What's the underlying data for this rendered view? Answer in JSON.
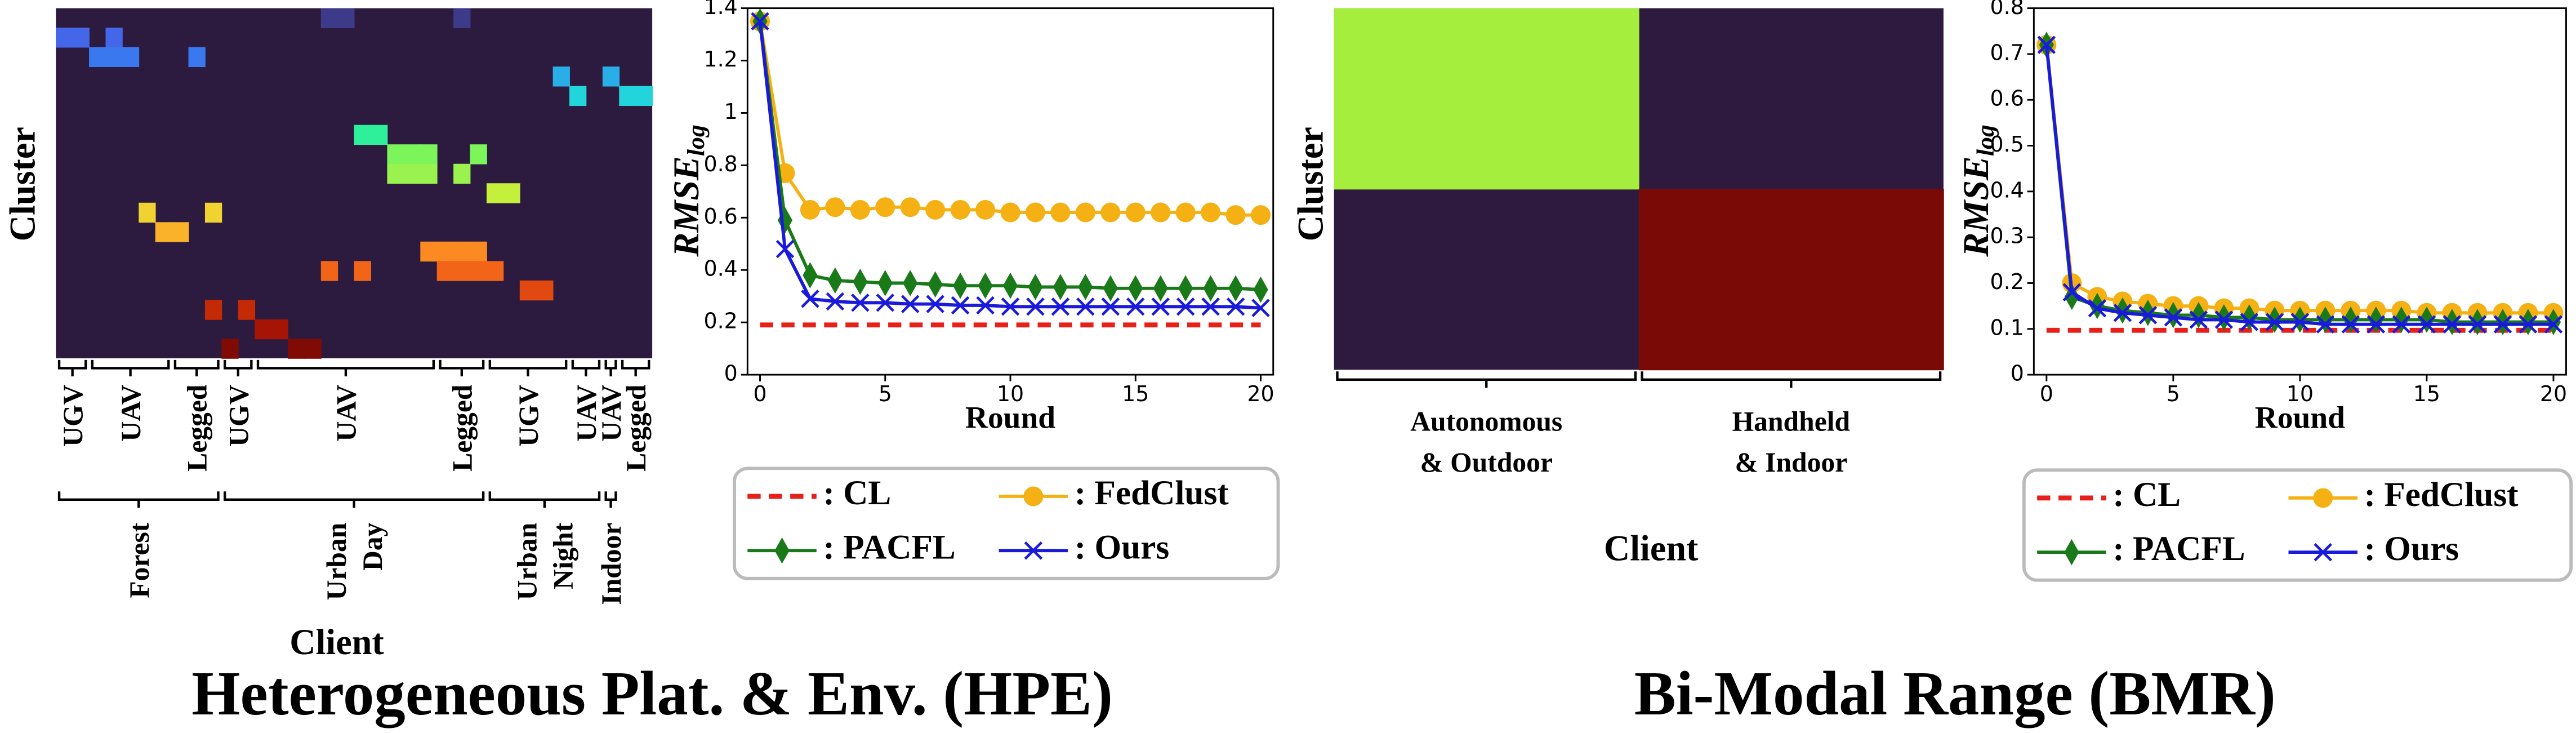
{
  "chart_data": [
    {
      "type": "heatmap",
      "title": "Heterogeneous Plat. & Env. (HPE)",
      "xlabel": "Client",
      "ylabel": "Cluster",
      "xlim": [
        0,
        36
      ],
      "ylim": [
        0,
        18
      ],
      "colors": [
        "#2d1b3f",
        "#3d3a8a",
        "#4466e8",
        "#3a78f0",
        "#2aaee8",
        "#22d4dc",
        "#2ef09a",
        "#7cf55a",
        "#9af24e",
        "#c4f03c",
        "#f0d232",
        "#fab22a",
        "#fb8a22",
        "#f26418",
        "#e04a10",
        "#c42a06",
        "#a51404",
        "#800a04"
      ],
      "cells": [
        {
          "row": 0,
          "col": 16,
          "value": 1
        },
        {
          "row": 0,
          "col": 17,
          "value": 1
        },
        {
          "row": 0,
          "col": 24,
          "value": 1
        },
        {
          "row": 1,
          "col": 0,
          "value": 2
        },
        {
          "row": 1,
          "col": 1,
          "value": 2
        },
        {
          "row": 1,
          "col": 3,
          "value": 2
        },
        {
          "row": 2,
          "col": 2,
          "value": 3
        },
        {
          "row": 2,
          "col": 3,
          "value": 3
        },
        {
          "row": 2,
          "col": 4,
          "value": 3
        },
        {
          "row": 2,
          "col": 8,
          "value": 3
        },
        {
          "row": 3,
          "col": 30,
          "value": 4
        },
        {
          "row": 3,
          "col": 33,
          "value": 4
        },
        {
          "row": 4,
          "col": 31,
          "value": 5
        },
        {
          "row": 4,
          "col": 34,
          "value": 5
        },
        {
          "row": 4,
          "col": 35,
          "value": 5
        },
        {
          "row": 6,
          "col": 18,
          "value": 6
        },
        {
          "row": 6,
          "col": 19,
          "value": 6
        },
        {
          "row": 7,
          "col": 20,
          "value": 7
        },
        {
          "row": 7,
          "col": 21,
          "value": 7
        },
        {
          "row": 7,
          "col": 22,
          "value": 7
        },
        {
          "row": 7,
          "col": 25,
          "value": 7
        },
        {
          "row": 8,
          "col": 20,
          "value": 8
        },
        {
          "row": 8,
          "col": 21,
          "value": 8
        },
        {
          "row": 8,
          "col": 22,
          "value": 8
        },
        {
          "row": 8,
          "col": 24,
          "value": 8
        },
        {
          "row": 9,
          "col": 26,
          "value": 9
        },
        {
          "row": 9,
          "col": 27,
          "value": 9
        },
        {
          "row": 10,
          "col": 5,
          "value": 10
        },
        {
          "row": 10,
          "col": 9,
          "value": 10
        },
        {
          "row": 11,
          "col": 6,
          "value": 11
        },
        {
          "row": 11,
          "col": 7,
          "value": 11
        },
        {
          "row": 12,
          "col": 22,
          "value": 12
        },
        {
          "row": 12,
          "col": 23,
          "value": 12
        },
        {
          "row": 12,
          "col": 24,
          "value": 12
        },
        {
          "row": 12,
          "col": 25,
          "value": 12
        },
        {
          "row": 13,
          "col": 16,
          "value": 13
        },
        {
          "row": 13,
          "col": 18,
          "value": 13
        },
        {
          "row": 13,
          "col": 23,
          "value": 13
        },
        {
          "row": 13,
          "col": 24,
          "value": 13
        },
        {
          "row": 13,
          "col": 25,
          "value": 13
        },
        {
          "row": 13,
          "col": 26,
          "value": 13
        },
        {
          "row": 14,
          "col": 28,
          "value": 14
        },
        {
          "row": 14,
          "col": 29,
          "value": 14
        },
        {
          "row": 15,
          "col": 9,
          "value": 15
        },
        {
          "row": 15,
          "col": 11,
          "value": 15
        },
        {
          "row": 16,
          "col": 12,
          "value": 16
        },
        {
          "row": 16,
          "col": 13,
          "value": 16
        },
        {
          "row": 17,
          "col": 10,
          "value": 17
        },
        {
          "row": 17,
          "col": 14,
          "value": 17
        },
        {
          "row": 17,
          "col": 15,
          "value": 17
        }
      ],
      "client_groups": [
        {
          "label": [
            "UGV"
          ],
          "span": [
            0,
            2
          ]
        },
        {
          "label": [
            "UAV"
          ],
          "span": [
            2,
            7
          ]
        },
        {
          "label": [
            "Legged"
          ],
          "span": [
            7,
            10
          ]
        },
        {
          "label": [
            "UGV"
          ],
          "span": [
            10,
            12
          ]
        },
        {
          "label": [
            "UAV"
          ],
          "span": [
            12,
            23
          ]
        },
        {
          "label": [
            "Legged"
          ],
          "span": [
            23,
            26
          ]
        },
        {
          "label": [
            "UGV"
          ],
          "span": [
            26,
            31
          ]
        },
        {
          "label": [
            "UAV"
          ],
          "span": [
            31,
            33
          ]
        },
        {
          "label": [
            "UAV"
          ],
          "span": [
            33,
            34
          ]
        },
        {
          "label": [
            "Legged"
          ],
          "span": [
            34,
            36
          ]
        }
      ],
      "environment_groups": [
        {
          "label": [
            "Forest"
          ],
          "span": [
            0,
            10
          ]
        },
        {
          "label": [
            "Urban",
            "Day"
          ],
          "span": [
            10,
            26
          ]
        },
        {
          "label": [
            "Urban",
            "Night"
          ],
          "span": [
            26,
            33
          ]
        },
        {
          "label": [
            "Indoor"
          ],
          "span": [
            33,
            34
          ]
        }
      ]
    },
    {
      "type": "line",
      "xlabel": "Round",
      "ylabel": {
        "main": "RMSE",
        "sub": "log"
      },
      "x": [
        0,
        1,
        2,
        3,
        4,
        5,
        6,
        7,
        8,
        9,
        10,
        11,
        12,
        13,
        14,
        15,
        16,
        17,
        18,
        19,
        20
      ],
      "xlim": [
        -0.5,
        20.5
      ],
      "xticks": [
        0,
        5,
        10,
        15,
        20
      ],
      "ylim": [
        0,
        1.4
      ],
      "yticks": [
        0.0,
        0.2,
        0.4,
        0.6,
        0.8,
        1.0,
        1.2,
        1.4
      ],
      "series": [
        {
          "name": ": CL",
          "color": "#e8201a",
          "linestyle": "dashed",
          "marker": null,
          "values": [
            0.19,
            0.19,
            0.19,
            0.19,
            0.19,
            0.19,
            0.19,
            0.19,
            0.19,
            0.19,
            0.19,
            0.19,
            0.19,
            0.19,
            0.19,
            0.19,
            0.19,
            0.19,
            0.19,
            0.19,
            0.19
          ]
        },
        {
          "name": ": FedClust",
          "color": "#f5b014",
          "linestyle": "solid",
          "marker": "circle",
          "values": [
            1.35,
            0.77,
            0.63,
            0.64,
            0.63,
            0.64,
            0.64,
            0.63,
            0.63,
            0.63,
            0.62,
            0.62,
            0.62,
            0.62,
            0.62,
            0.62,
            0.62,
            0.62,
            0.62,
            0.61,
            0.61
          ]
        },
        {
          "name": ": PACFL",
          "color": "#1a7a1a",
          "linestyle": "solid",
          "marker": "diamond",
          "values": [
            1.35,
            0.59,
            0.38,
            0.36,
            0.355,
            0.35,
            0.35,
            0.345,
            0.34,
            0.34,
            0.34,
            0.335,
            0.335,
            0.335,
            0.33,
            0.33,
            0.33,
            0.33,
            0.33,
            0.33,
            0.325
          ]
        },
        {
          "name": ": Ours",
          "color": "#1a1adb",
          "linestyle": "solid",
          "marker": "x",
          "values": [
            1.35,
            0.48,
            0.29,
            0.28,
            0.275,
            0.275,
            0.27,
            0.27,
            0.265,
            0.265,
            0.26,
            0.26,
            0.26,
            0.26,
            0.26,
            0.26,
            0.26,
            0.26,
            0.26,
            0.26,
            0.255
          ]
        }
      ]
    },
    {
      "type": "heatmap",
      "title": "Bi-Modal Range (BMR)",
      "xlabel": "Client",
      "ylabel": "Cluster",
      "xlim": [
        0,
        2
      ],
      "ylim": [
        0,
        2
      ],
      "colors": [
        "#2d1a3e",
        "#a6ee3e",
        "#7a0a06"
      ],
      "cells": [
        {
          "row": 0,
          "col": 0,
          "value": 1
        },
        {
          "row": 1,
          "col": 1,
          "value": 2
        }
      ],
      "client_groups": [
        {
          "label": [
            "Autonomous",
            "& Outdoor"
          ],
          "span": [
            0,
            1
          ]
        },
        {
          "label": [
            "Handheld",
            "& Indoor"
          ],
          "span": [
            1,
            2
          ]
        }
      ]
    },
    {
      "type": "line",
      "xlabel": "Round",
      "ylabel": {
        "main": "RMSE",
        "sub": "log"
      },
      "x": [
        0,
        1,
        2,
        3,
        4,
        5,
        6,
        7,
        8,
        9,
        10,
        11,
        12,
        13,
        14,
        15,
        16,
        17,
        18,
        19,
        20
      ],
      "xlim": [
        -0.5,
        20.5
      ],
      "xticks": [
        0,
        5,
        10,
        15,
        20
      ],
      "ylim": [
        0,
        0.8
      ],
      "yticks": [
        0.0,
        0.1,
        0.2,
        0.3,
        0.4,
        0.5,
        0.6,
        0.7,
        0.8
      ],
      "series": [
        {
          "name": ": CL",
          "color": "#e8201a",
          "linestyle": "dashed",
          "marker": null,
          "values": [
            0.097,
            0.097,
            0.097,
            0.097,
            0.097,
            0.097,
            0.097,
            0.097,
            0.097,
            0.097,
            0.097,
            0.097,
            0.097,
            0.097,
            0.097,
            0.097,
            0.097,
            0.097,
            0.097,
            0.097,
            0.097
          ]
        },
        {
          "name": ": FedClust",
          "color": "#f5b014",
          "linestyle": "solid",
          "marker": "circle",
          "values": [
            0.72,
            0.2,
            0.17,
            0.16,
            0.155,
            0.15,
            0.15,
            0.145,
            0.145,
            0.14,
            0.14,
            0.14,
            0.14,
            0.14,
            0.14,
            0.135,
            0.135,
            0.135,
            0.135,
            0.135,
            0.135
          ]
        },
        {
          "name": ": PACFL",
          "color": "#1a7a1a",
          "linestyle": "solid",
          "marker": "diamond",
          "values": [
            0.72,
            0.17,
            0.15,
            0.14,
            0.135,
            0.13,
            0.13,
            0.125,
            0.125,
            0.12,
            0.12,
            0.12,
            0.12,
            0.12,
            0.12,
            0.12,
            0.115,
            0.115,
            0.115,
            0.115,
            0.115
          ]
        },
        {
          "name": ": Ours",
          "color": "#1a1adb",
          "linestyle": "solid",
          "marker": "x",
          "values": [
            0.72,
            0.18,
            0.145,
            0.135,
            0.13,
            0.125,
            0.12,
            0.12,
            0.115,
            0.115,
            0.115,
            0.11,
            0.11,
            0.11,
            0.11,
            0.11,
            0.11,
            0.11,
            0.11,
            0.11,
            0.11
          ]
        }
      ]
    }
  ]
}
